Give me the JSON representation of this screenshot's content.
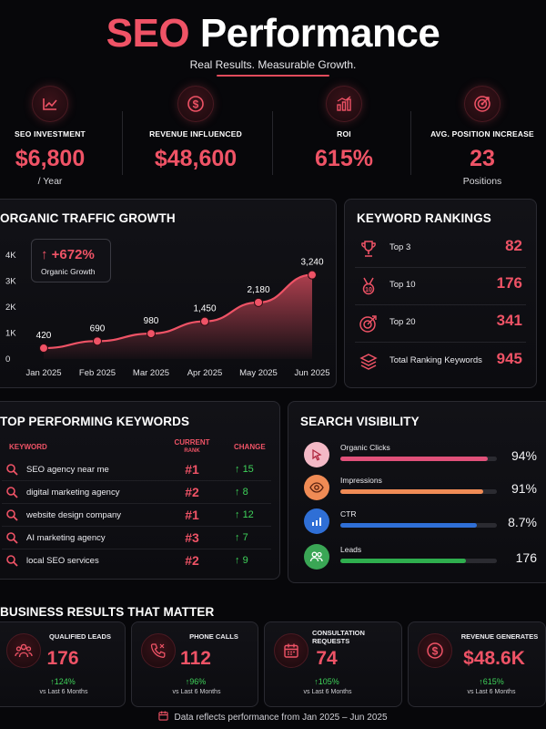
{
  "header": {
    "title_accent": "SEO",
    "title_rest": "Performance",
    "subtitle": "Real Results. Measurable Growth."
  },
  "stats": [
    {
      "icon": "trend-up-icon",
      "label": "SEO INVESTMENT",
      "value": "$6,800",
      "sub": "/ Year"
    },
    {
      "icon": "dollar-icon",
      "label": "REVENUE INFLUENCED",
      "value": "$48,600",
      "sub": ""
    },
    {
      "icon": "bar-chart-icon",
      "label": "ROI",
      "value": "615%",
      "sub": ""
    },
    {
      "icon": "target-icon",
      "label": "AVG. POSITION INCREASE",
      "value": "23",
      "sub": "Positions"
    }
  ],
  "traffic": {
    "title": "ORGANIC TRAFFIC GROWTH",
    "badge_value": "+672%",
    "badge_label": "Organic Growth"
  },
  "chart_data": {
    "type": "area",
    "title": "ORGANIC TRAFFIC GROWTH",
    "categories": [
      "Jan 2025",
      "Feb 2025",
      "Mar 2025",
      "Apr 2025",
      "May 2025",
      "Jun 2025"
    ],
    "values": [
      420,
      690,
      980,
      1450,
      2180,
      3240
    ],
    "data_labels": [
      "420",
      "690",
      "980",
      "1,450",
      "2,180",
      "3,240"
    ],
    "y_ticks": [
      0,
      1000,
      2000,
      3000,
      4000
    ],
    "y_tick_labels": [
      "0",
      "1K",
      "2K",
      "3K",
      "4K"
    ],
    "ylim": [
      0,
      4000
    ],
    "grid": false,
    "line_color": "#ef5366",
    "annotation": "+672% Organic Growth"
  },
  "rankings": {
    "title": "KEYWORD RANKINGS",
    "items": [
      {
        "icon": "trophy-icon",
        "label": "Top 3",
        "value": "82"
      },
      {
        "icon": "medal-icon",
        "label": "Top 10",
        "value": "176"
      },
      {
        "icon": "target-icon",
        "label": "Top 20",
        "value": "341"
      },
      {
        "icon": "layers-icon",
        "label": "Total Ranking Keywords",
        "value": "945"
      }
    ]
  },
  "keywords": {
    "title": "TOP PERFORMING KEYWORDS",
    "col_keyword": "KEYWORD",
    "col_rank_top": "CURRENT",
    "col_rank_bottom": "RANK",
    "col_change": "CHANGE",
    "rows": [
      {
        "keyword": "SEO agency near me",
        "rank": "#1",
        "change": "15"
      },
      {
        "keyword": "digital marketing agency",
        "rank": "#2",
        "change": "8"
      },
      {
        "keyword": "website design company",
        "rank": "#1",
        "change": "12"
      },
      {
        "keyword": "AI marketing agency",
        "rank": "#3",
        "change": "7"
      },
      {
        "keyword": "local SEO services",
        "rank": "#2",
        "change": "9"
      }
    ]
  },
  "visibility": {
    "title": "SEARCH VISIBILITY",
    "items": [
      {
        "icon": "cursor-click-icon",
        "label": "Organic Clicks",
        "value": "94%",
        "fill": 0.94,
        "color": "#e0517a",
        "icon_bg": "#f3b9c6"
      },
      {
        "icon": "eye-icon",
        "label": "Impressions",
        "value": "91%",
        "fill": 0.91,
        "color": "#f08b55",
        "icon_bg": "#f08b55"
      },
      {
        "icon": "bar-chart-icon",
        "label": "CTR",
        "value": "8.7%",
        "fill": 0.87,
        "color": "#2f6fd6",
        "icon_bg": "#2f6fd6"
      },
      {
        "icon": "users-icon",
        "label": "Leads",
        "value": "176",
        "fill": 0.8,
        "color": "#2fae4e",
        "icon_bg": "#3aa655"
      }
    ]
  },
  "results": {
    "title": "BUSINESS RESULTS THAT MATTER",
    "cards": [
      {
        "icon": "users-icon",
        "label": "QUALIFIED LEADS",
        "value": "176",
        "change": "124%",
        "sub": "vs Last 6 Months"
      },
      {
        "icon": "phone-icon",
        "label": "PHONE CALLS",
        "value": "112",
        "change": "96%",
        "sub": "vs Last 6 Months"
      },
      {
        "icon": "calendar-icon",
        "label": "CONSULTATION REQUESTS",
        "value": "74",
        "change": "105%",
        "sub": "vs Last 6 Months"
      },
      {
        "icon": "dollar-icon",
        "label": "REVENUE GENERATES",
        "value": "$48.6K",
        "change": "615%",
        "sub": "vs Last 6 Months"
      }
    ]
  },
  "footer": {
    "icon": "calendar-icon",
    "text": "Data reflects performance from Jan 2025 – Jun 2025"
  }
}
